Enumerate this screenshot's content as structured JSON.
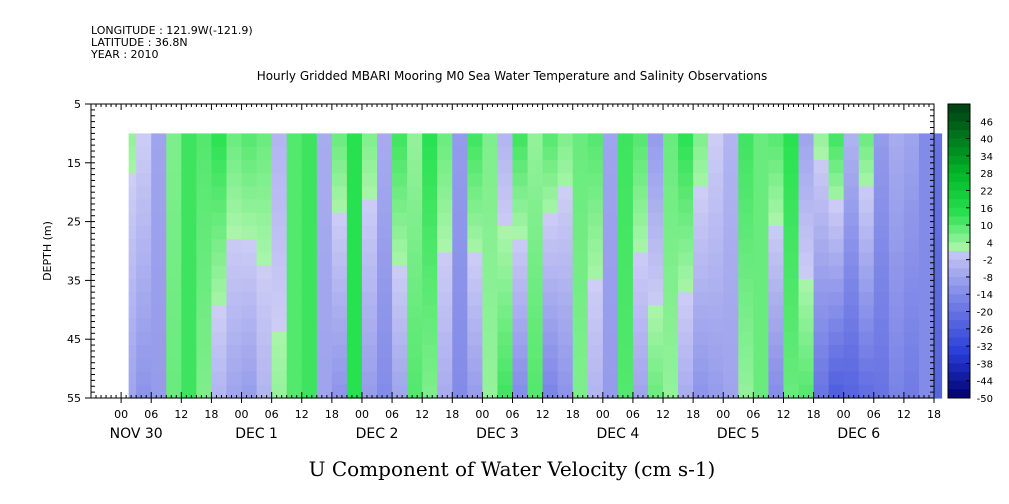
{
  "header": {
    "longitude": "LONGITUDE : 121.9W(-121.9)",
    "latitude": "LATITUDE : 36.8N",
    "year": "YEAR : 2010"
  },
  "chart_data": {
    "type": "heatmap",
    "title": "Hourly Gridded MBARI Mooring M0 Sea Water Temperature and Salinity Observations",
    "xlabel": "U Component of Water Velocity (cm s-1)",
    "ylabel": "DEPTH (m)",
    "y_ticks": [
      5,
      15,
      25,
      35,
      45,
      55
    ],
    "ylim": [
      55,
      5
    ],
    "data_depth_range": [
      10,
      55
    ],
    "x_hour_ticks": [
      "00",
      "06",
      "12",
      "18",
      "00",
      "06",
      "12",
      "18",
      "00",
      "06",
      "12",
      "18",
      "00",
      "06",
      "12",
      "18",
      "00",
      "06",
      "12",
      "18",
      "00",
      "06",
      "12",
      "18",
      "00",
      "06",
      "12",
      "18"
    ],
    "day_labels": [
      "NOV 30",
      "DEC  1",
      "DEC  2",
      "DEC  3",
      "DEC  4",
      "DEC  5",
      "DEC  6"
    ],
    "colorbar": {
      "tick_labels": [
        "46",
        "40",
        "34",
        "28",
        "22",
        "16",
        "10",
        "4",
        "-2",
        "-8",
        "-14",
        "-20",
        "-26",
        "-32",
        "-38",
        "-44",
        "-50"
      ],
      "min": -50,
      "max": 52,
      "step": 3
    },
    "velocity_profile": {
      "hours_since_nov30_00": [
        1.5,
        3,
        6,
        9,
        12,
        15,
        18,
        21,
        24,
        27,
        30,
        33,
        36,
        39,
        42,
        45,
        48,
        51,
        54,
        57,
        60,
        63,
        66,
        69,
        72,
        75,
        78,
        81,
        84,
        87,
        90,
        93,
        96,
        99,
        102,
        105,
        108,
        111,
        114,
        117,
        120,
        123,
        126,
        129,
        132,
        135,
        138,
        141,
        144,
        147,
        150,
        153,
        156,
        159,
        162
      ],
      "surface_u": [
        4,
        2,
        -8,
        6,
        12,
        10,
        14,
        8,
        10,
        8,
        -4,
        10,
        12,
        -6,
        8,
        14,
        6,
        -6,
        12,
        4,
        14,
        8,
        -10,
        12,
        6,
        -4,
        12,
        4,
        10,
        6,
        8,
        10,
        -8,
        12,
        10,
        -10,
        8,
        14,
        6,
        2,
        -4,
        12,
        8,
        10,
        14,
        -8,
        4,
        12,
        -4,
        8,
        -10,
        -6,
        -8,
        -14,
        -20
      ],
      "bottom_u": [
        -8,
        -12,
        -10,
        8,
        12,
        6,
        -4,
        -8,
        -10,
        -4,
        4,
        10,
        12,
        -8,
        -12,
        14,
        -10,
        -14,
        -8,
        10,
        6,
        -6,
        -14,
        -10,
        4,
        12,
        -14,
        10,
        -16,
        -12,
        6,
        -4,
        -10,
        10,
        -8,
        8,
        4,
        -6,
        -12,
        -10,
        -8,
        4,
        8,
        -14,
        8,
        10,
        -20,
        -26,
        -24,
        -22,
        -20,
        -16,
        -18,
        -14,
        -24
      ]
    }
  }
}
